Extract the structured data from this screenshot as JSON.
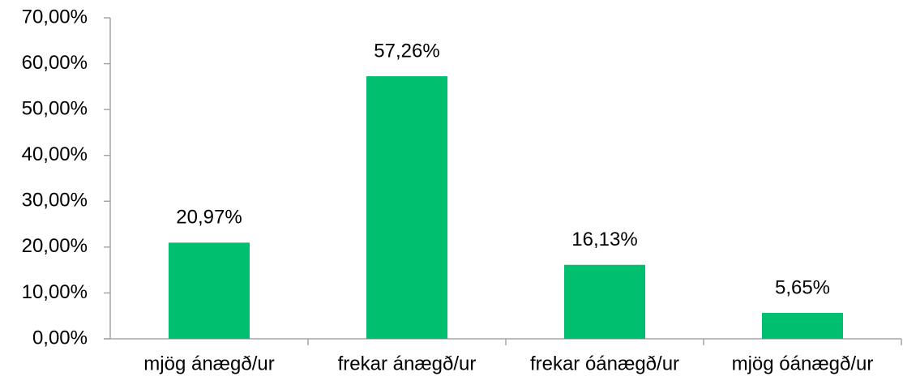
{
  "chart_data": {
    "type": "bar",
    "categories": [
      "mjög ánægð/ur",
      "frekar ánægð/ur",
      "frekar óánægð/ur",
      "mjög óánægð/ur"
    ],
    "values": [
      20.97,
      57.26,
      16.13,
      5.65
    ],
    "value_labels": [
      "20,97%",
      "57,26%",
      "16,13%",
      "5,65%"
    ],
    "color": "#00bf6f",
    "ylim": [
      0,
      70
    ],
    "yticks": [
      {
        "value": 0,
        "label": "0,00%"
      },
      {
        "value": 10,
        "label": "10,00%"
      },
      {
        "value": 20,
        "label": "20,00%"
      },
      {
        "value": 30,
        "label": "30,00%"
      },
      {
        "value": 40,
        "label": "40,00%"
      },
      {
        "value": 50,
        "label": "50,00%"
      },
      {
        "value": 60,
        "label": "60,00%"
      },
      {
        "value": 70,
        "label": "70,00%"
      }
    ],
    "grid": false
  }
}
